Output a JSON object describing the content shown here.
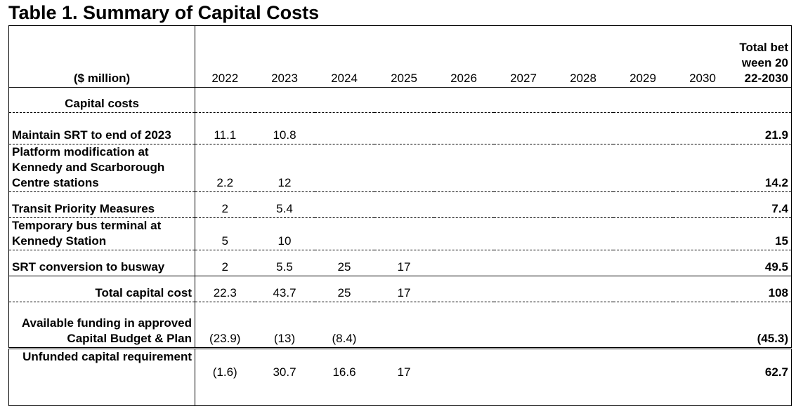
{
  "title": "Table 1. Summary of Capital Costs",
  "table": {
    "header": [
      "($ million)",
      "2022",
      "2023",
      "2024",
      "2025",
      "2026",
      "2027",
      "2028",
      "2029",
      "2030",
      "Total between 2022-2030"
    ],
    "rows": [
      {
        "label": "Capital costs",
        "cells": [
          null,
          null,
          null,
          null,
          null,
          null,
          null,
          null,
          null,
          null
        ]
      },
      {
        "label": "Maintain SRT to end of 2023",
        "cells": [
          "11.1",
          "10.8",
          null,
          null,
          null,
          null,
          null,
          null,
          null,
          "21.9"
        ]
      },
      {
        "label": "Platform modification at Kennedy and Scarborough Centre stations",
        "cells": [
          "2.2",
          "12",
          null,
          null,
          null,
          null,
          null,
          null,
          null,
          "14.2"
        ]
      },
      {
        "label": "Transit Priority Measures",
        "cells": [
          "2",
          "5.4",
          null,
          null,
          null,
          null,
          null,
          null,
          null,
          "7.4"
        ]
      },
      {
        "label": "Temporary bus terminal at Kennedy Station",
        "cells": [
          "5",
          "10",
          null,
          null,
          null,
          null,
          null,
          null,
          null,
          "15"
        ]
      },
      {
        "label": "SRT conversion to busway",
        "cells": [
          "2",
          "5.5",
          "25",
          "17",
          null,
          null,
          null,
          null,
          null,
          "49.5"
        ]
      },
      {
        "label": "Total capital cost",
        "cells": [
          "22.3",
          "43.7",
          "25",
          "17",
          null,
          null,
          null,
          null,
          null,
          "108"
        ]
      },
      {
        "label": "Available funding in approved Capital Budget & Plan",
        "cells": [
          "(23.9)",
          "(13)",
          "(8.4)",
          null,
          null,
          null,
          null,
          null,
          null,
          "(45.3)"
        ]
      },
      {
        "label": "Unfunded capital requirement",
        "cells": [
          "(1.6)",
          "30.7",
          "16.6",
          "17",
          null,
          null,
          null,
          null,
          null,
          "62.7"
        ]
      }
    ]
  }
}
